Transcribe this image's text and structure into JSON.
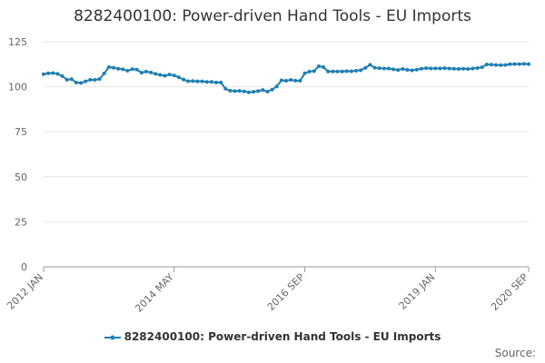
{
  "chart_data": {
    "type": "line",
    "title": "8282400100: Power-driven Hand Tools - EU Imports",
    "xlabel": "",
    "ylabel": "",
    "ylim": [
      0,
      125
    ],
    "yticks": [
      0,
      25,
      50,
      75,
      100,
      125
    ],
    "x_tick_labels": [
      "2012 JAN",
      "2014 MAY",
      "2016 SEP",
      "2019 JAN",
      "2020 SEP"
    ],
    "x_tick_index": [
      0,
      28,
      56,
      84,
      104
    ],
    "legend_position": "bottom",
    "grid": true,
    "series": [
      {
        "name": "8282400100: Power-driven Hand Tools - EU Imports",
        "color": "#1f7fb4",
        "values": [
          107.0,
          107.5,
          107.6,
          107.2,
          105.9,
          103.9,
          104.2,
          102.3,
          102.1,
          103.0,
          103.9,
          103.8,
          104.3,
          107.4,
          110.9,
          110.6,
          110.0,
          109.7,
          108.9,
          109.8,
          109.5,
          107.8,
          108.4,
          107.9,
          107.2,
          106.6,
          106.1,
          106.8,
          106.3,
          105.2,
          104.0,
          103.1,
          103.2,
          103.0,
          103.0,
          102.7,
          102.7,
          102.4,
          102.4,
          98.9,
          97.8,
          97.6,
          97.7,
          97.4,
          96.9,
          97.2,
          97.6,
          98.2,
          97.3,
          98.4,
          100.2,
          103.6,
          103.3,
          103.8,
          103.4,
          103.3,
          107.5,
          108.4,
          108.7,
          111.4,
          110.9,
          108.5,
          108.5,
          108.5,
          108.5,
          108.7,
          108.6,
          108.9,
          109.2,
          110.5,
          112.2,
          110.6,
          110.3,
          110.1,
          110.1,
          109.7,
          109.3,
          109.9,
          109.4,
          109.1,
          109.5,
          110.0,
          110.3,
          110.2,
          110.2,
          110.2,
          110.3,
          110.1,
          110.0,
          109.9,
          110.0,
          109.9,
          110.1,
          110.4,
          110.8,
          112.4,
          112.3,
          112.1,
          112.0,
          112.1,
          112.5,
          112.6,
          112.6,
          112.7,
          112.6
        ]
      }
    ]
  },
  "source_label": "Source:"
}
